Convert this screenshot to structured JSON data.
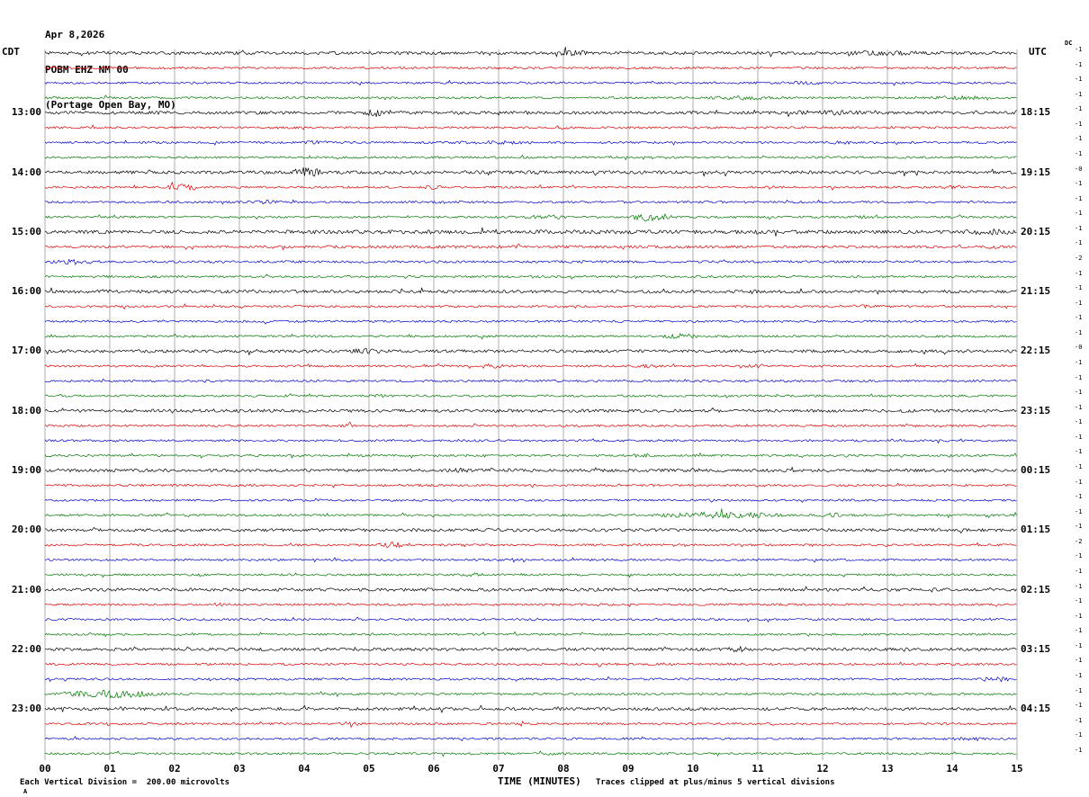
{
  "header": {
    "date": "Apr 8,2026",
    "station": "POBM EHZ NM 00",
    "location": "(Portage Open Bay, MO)"
  },
  "axes": {
    "left_label": "CDT",
    "right_label": "UTC",
    "dc_label": "DC",
    "x_axis_title": "TIME (MINUTES)",
    "x_ticks": [
      "00",
      "01",
      "02",
      "03",
      "04",
      "05",
      "06",
      "07",
      "08",
      "09",
      "10",
      "11",
      "12",
      "13",
      "14",
      "15"
    ]
  },
  "footer": {
    "left": "Each Vertical Division =  200.00 microvolts",
    "right": "Traces clipped at plus/minus 5 vertical divisions",
    "corner": "A"
  },
  "chart_data": {
    "type": "line",
    "subtype": "helicorder-seismogram",
    "title": "POBM EHZ NM 00 (Portage Open Bay, MO) Apr 8,2026",
    "xlabel": "TIME (MINUTES)",
    "x_range_minutes": [
      0,
      15
    ],
    "minutes_per_row": 15,
    "rows": 48,
    "row_start_cdt": "12:00",
    "hour_label_every": 4,
    "first_label_row": 4,
    "microvolts_per_division": 200,
    "clip_divisions": 5,
    "trace_colors_cycle": [
      "#000000",
      "#dd0000",
      "#0000cc",
      "#007700"
    ],
    "left_times": [
      "13:00",
      "14:00",
      "15:00",
      "16:00",
      "17:00",
      "18:00",
      "19:00",
      "20:00",
      "21:00",
      "22:00",
      "23:00"
    ],
    "right_times": [
      "18:15",
      "19:15",
      "20:15",
      "21:15",
      "22:15",
      "23:15",
      "00:15",
      "01:15",
      "02:15",
      "03:15",
      "04:15"
    ],
    "dc_offsets": [
      "-1",
      "-1",
      "-1",
      "-1",
      "-1",
      "-1",
      "-1",
      "-1",
      "-0",
      "-1",
      "-1",
      "-1",
      "-1",
      "-1",
      "-2",
      "-1",
      "-1",
      "-1",
      "-1",
      "-1",
      "-0",
      "-1",
      "-1",
      "-1",
      "-1",
      "-1",
      "-1",
      "-1",
      "-1",
      "-1",
      "-1",
      "-1",
      "-1",
      "-2",
      "-1",
      "-1",
      "-1",
      "-1",
      "-1",
      "-1",
      "-1",
      "-1",
      "-1",
      "-1",
      "-1",
      "-1",
      "-1",
      "-1"
    ],
    "events": [
      {
        "row": 0,
        "start": 7.9,
        "end": 8.4,
        "amp": 2.0
      },
      {
        "row": 0,
        "start": 12.3,
        "end": 13.6,
        "amp": 1.7
      },
      {
        "row": 2,
        "start": 11.0,
        "end": 12.5,
        "amp": 1.5
      },
      {
        "row": 3,
        "start": 10.2,
        "end": 11.3,
        "amp": 2.2
      },
      {
        "row": 3,
        "start": 13.7,
        "end": 14.5,
        "amp": 2.4
      },
      {
        "row": 4,
        "start": 4.9,
        "end": 5.4,
        "amp": 2.6
      },
      {
        "row": 4,
        "start": 11.3,
        "end": 12.7,
        "amp": 1.7
      },
      {
        "row": 5,
        "start": 7.8,
        "end": 8.1,
        "amp": 1.8
      },
      {
        "row": 6,
        "start": 3.9,
        "end": 4.4,
        "amp": 2.0
      },
      {
        "row": 6,
        "start": 6.2,
        "end": 7.7,
        "amp": 1.8
      },
      {
        "row": 6,
        "start": 12.1,
        "end": 12.6,
        "amp": 1.8
      },
      {
        "row": 8,
        "start": 3.8,
        "end": 4.3,
        "amp": 3.6
      },
      {
        "row": 8,
        "start": 0.0,
        "end": 15,
        "amp": 1.15
      },
      {
        "row": 9,
        "start": 1.8,
        "end": 2.5,
        "amp": 3.0
      },
      {
        "row": 9,
        "start": 5.8,
        "end": 6.2,
        "amp": 2.4
      },
      {
        "row": 9,
        "start": 13.8,
        "end": 14.3,
        "amp": 1.9
      },
      {
        "row": 10,
        "start": 3.1,
        "end": 3.7,
        "amp": 2.0
      },
      {
        "row": 10,
        "start": 6.0,
        "end": 6.3,
        "amp": 1.8
      },
      {
        "row": 11,
        "start": 7.3,
        "end": 8.2,
        "amp": 2.0
      },
      {
        "row": 11,
        "start": 9.0,
        "end": 9.7,
        "amp": 5.0
      },
      {
        "row": 11,
        "start": 12.4,
        "end": 12.9,
        "amp": 1.6
      },
      {
        "row": 12,
        "start": 0,
        "end": 15,
        "amp": 1.3
      },
      {
        "row": 12,
        "start": 14.1,
        "end": 15,
        "amp": 2.2
      },
      {
        "row": 13,
        "start": 0,
        "end": 15,
        "amp": 1.35
      },
      {
        "row": 13,
        "start": 14.4,
        "end": 15,
        "amp": 2.0
      },
      {
        "row": 14,
        "start": 0,
        "end": 0.9,
        "amp": 2.8
      },
      {
        "row": 14,
        "start": 0,
        "end": 15,
        "amp": 1.15
      },
      {
        "row": 16,
        "start": 10.8,
        "end": 11.1,
        "amp": 1.8
      },
      {
        "row": 17,
        "start": 12.4,
        "end": 12.9,
        "amp": 2.0
      },
      {
        "row": 19,
        "start": 9.5,
        "end": 10.1,
        "amp": 2.8
      },
      {
        "row": 20,
        "start": 4.7,
        "end": 5.2,
        "amp": 2.0
      },
      {
        "row": 21,
        "start": 6.7,
        "end": 7.1,
        "amp": 2.4
      },
      {
        "row": 21,
        "start": 9.1,
        "end": 9.5,
        "amp": 2.0
      },
      {
        "row": 21,
        "start": 10.8,
        "end": 11.2,
        "amp": 2.0
      },
      {
        "row": 23,
        "start": 5.0,
        "end": 5.3,
        "amp": 1.8
      },
      {
        "row": 25,
        "start": 4.5,
        "end": 4.8,
        "amp": 1.8
      },
      {
        "row": 27,
        "start": 9.0,
        "end": 9.4,
        "amp": 2.4
      },
      {
        "row": 28,
        "start": 6.2,
        "end": 6.6,
        "amp": 2.0
      },
      {
        "row": 31,
        "start": 9.3,
        "end": 11.5,
        "amp": 3.2
      },
      {
        "row": 31,
        "start": 11.9,
        "end": 12.4,
        "amp": 2.0
      },
      {
        "row": 33,
        "start": 5.1,
        "end": 5.6,
        "amp": 2.8
      },
      {
        "row": 35,
        "start": 6.4,
        "end": 6.8,
        "amp": 1.8
      },
      {
        "row": 37,
        "start": 2.5,
        "end": 2.8,
        "amp": 1.8
      },
      {
        "row": 40,
        "start": 10.5,
        "end": 10.9,
        "amp": 2.0
      },
      {
        "row": 42,
        "start": 14.4,
        "end": 15,
        "amp": 2.8
      },
      {
        "row": 43,
        "start": 0.1,
        "end": 1.9,
        "amp": 3.8
      },
      {
        "row": 45,
        "start": 4.5,
        "end": 4.9,
        "amp": 1.9
      },
      {
        "row": 46,
        "start": 13.8,
        "end": 14.6,
        "amp": 1.6
      },
      {
        "row": 47,
        "start": 7.7,
        "end": 8.1,
        "amp": 1.9
      }
    ]
  }
}
